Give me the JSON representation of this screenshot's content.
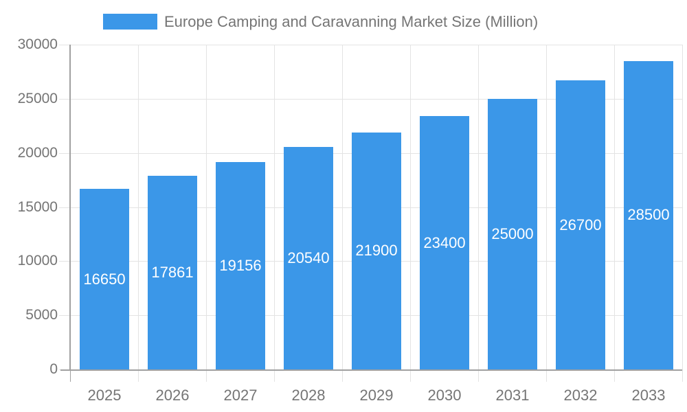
{
  "chart_data": {
    "type": "bar",
    "title": "Europe Camping and Caravanning Market Size (Million)",
    "legend_position": "top",
    "categories": [
      "2025",
      "2026",
      "2027",
      "2028",
      "2029",
      "2030",
      "2031",
      "2032",
      "2033"
    ],
    "values": [
      16650,
      17861,
      19156,
      20540,
      21900,
      23400,
      25000,
      26700,
      28500
    ],
    "xlabel": "",
    "ylabel": "",
    "ylim": [
      0,
      30000
    ],
    "ytick_step": 5000,
    "ytick_labels": [
      "0",
      "5000",
      "10000",
      "15000",
      "20000",
      "25000",
      "30000"
    ],
    "grid": true,
    "bar_labels_inside": true,
    "colors": {
      "bar": "#3B97E8",
      "bar_label": "#FFFFFF",
      "tick_text": "#757575",
      "axis": "#A0A0A0",
      "grid": "#E3E3E3",
      "background": "#FFFFFF"
    }
  }
}
